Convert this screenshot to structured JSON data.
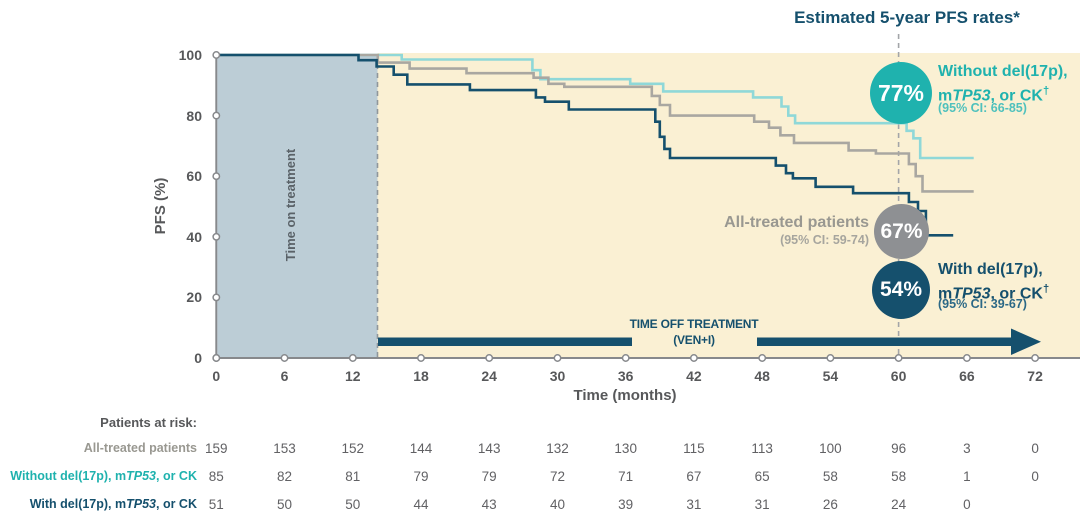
{
  "title": "Estimated 5-year PFS rates*",
  "colors": {
    "navy": "#15506d",
    "teal": "#1fb2ae",
    "teal_curve": "#8fd8d8",
    "teal_ci": "#4fc1bd",
    "gray_curve": "#a9a7a1",
    "gray_badge": "#8e9093",
    "gray_text": "#999891",
    "cream": "#faf0d3",
    "bluegray": "#bccdd6",
    "axis": "#87898c",
    "tick_text": "#57585a"
  },
  "panels": {
    "on_treatment_label": "Time on treatment"
  },
  "arrow": {
    "line1": "TIME OFF TREATMENT",
    "line2": "(VEN+I)"
  },
  "legend": {
    "without": {
      "badge": "77%",
      "line1": "Without del(17p),",
      "line2_pre": "m",
      "line2_italic": "TP53",
      "line2_post": ", or CK",
      "line2_sup": "†",
      "ci": "(95% CI: 66-85)"
    },
    "all": {
      "badge": "67%",
      "line1": "All-treated patients",
      "ci": "(95% CI: 59-74)"
    },
    "with": {
      "badge": "54%",
      "line1": "With del(17p),",
      "line2_pre": "m",
      "line2_italic": "TP53",
      "line2_post": ", or CK",
      "line2_sup": "†",
      "ci": "(95% CI: 39-67)"
    }
  },
  "chart_data": {
    "type": "line",
    "step": true,
    "title": "Estimated 5-year PFS rates*",
    "xlabel": "Time (months)",
    "ylabel": "PFS (%)",
    "xlim": [
      0,
      72
    ],
    "ylim": [
      0,
      100
    ],
    "x_ticks": [
      0,
      6,
      12,
      18,
      24,
      30,
      36,
      42,
      48,
      54,
      60,
      66,
      72
    ],
    "y_ticks": [
      0,
      20,
      40,
      60,
      80,
      100
    ],
    "grid": false,
    "annotations": {
      "time_on_treatment_months": [
        0,
        14
      ],
      "time_off_treatment_label": "TIME OFF TREATMENT (VEN+I)",
      "five_year_marker_month": 60
    },
    "series": [
      {
        "name": "Without del(17p), mTP53, or CK",
        "color": "#8fd8d8",
        "estimated_5yr_pfs_pct": 77,
        "ci_95": "66-85",
        "points": [
          [
            0,
            100
          ],
          [
            16.3,
            98.5
          ],
          [
            27.8,
            95
          ],
          [
            28.5,
            92
          ],
          [
            36.4,
            90.5
          ],
          [
            39.3,
            88
          ],
          [
            47.2,
            86
          ],
          [
            49.7,
            83
          ],
          [
            50.3,
            80
          ],
          [
            50.9,
            77.5
          ],
          [
            60.7,
            75
          ],
          [
            61.3,
            72.5
          ],
          [
            61.9,
            66
          ],
          [
            66.6,
            66
          ]
        ]
      },
      {
        "name": "All-treated patients",
        "color": "#a9a7a1",
        "estimated_5yr_pfs_pct": 67,
        "ci_95": "59-74",
        "points": [
          [
            0,
            100
          ],
          [
            14.2,
            97.5
          ],
          [
            17,
            95.5
          ],
          [
            22,
            94
          ],
          [
            27.9,
            92.5
          ],
          [
            29.2,
            90.5
          ],
          [
            30.6,
            89.5
          ],
          [
            38.3,
            86.5
          ],
          [
            39,
            83.5
          ],
          [
            39.9,
            80
          ],
          [
            47.3,
            78
          ],
          [
            48.6,
            76
          ],
          [
            49.6,
            73.5
          ],
          [
            50.8,
            71
          ],
          [
            55.6,
            68.5
          ],
          [
            58,
            67.5
          ],
          [
            60.9,
            64
          ],
          [
            61.5,
            60
          ],
          [
            62.1,
            55
          ],
          [
            66.6,
            55
          ]
        ]
      },
      {
        "name": "With del(17p), mTP53, or CK",
        "color": "#15506d",
        "estimated_5yr_pfs_pct": 54,
        "ci_95": "39-67",
        "points": [
          [
            0,
            100
          ],
          [
            12.5,
            98.3
          ],
          [
            14.1,
            96.2
          ],
          [
            15.6,
            93.5
          ],
          [
            16.8,
            90.3
          ],
          [
            22.3,
            88.4
          ],
          [
            28.1,
            86
          ],
          [
            28.9,
            84.6
          ],
          [
            31,
            82
          ],
          [
            38.6,
            78
          ],
          [
            39,
            73
          ],
          [
            39.4,
            69
          ],
          [
            39.9,
            66
          ],
          [
            49.2,
            63.5
          ],
          [
            50.1,
            61
          ],
          [
            50.7,
            59.3
          ],
          [
            52.7,
            56.5
          ],
          [
            56,
            54.4
          ],
          [
            60.9,
            51.5
          ],
          [
            61.7,
            48.5
          ],
          [
            62.4,
            40.5
          ],
          [
            64.8,
            40.5
          ]
        ]
      }
    ]
  },
  "at_risk": {
    "header": "Patients at risk:",
    "months": [
      0,
      6,
      12,
      18,
      24,
      30,
      36,
      42,
      48,
      54,
      60,
      66,
      72
    ],
    "rows": [
      {
        "label_pre": "All-treated patients",
        "label_italic": "",
        "label_post": "",
        "color": "#999891",
        "values": [
          "159",
          "153",
          "152",
          "144",
          "143",
          "132",
          "130",
          "115",
          "113",
          "100",
          "96",
          "3",
          "0"
        ]
      },
      {
        "label_pre": "Without del(17p), m",
        "label_italic": "TP53",
        "label_post": ", or CK",
        "color": "#1fb2ae",
        "values": [
          "85",
          "82",
          "81",
          "79",
          "79",
          "72",
          "71",
          "67",
          "65",
          "58",
          "58",
          "1",
          "0"
        ]
      },
      {
        "label_pre": "With del(17p), m",
        "label_italic": "TP53",
        "label_post": ", or CK",
        "color": "#15506d",
        "values": [
          "51",
          "50",
          "50",
          "44",
          "43",
          "40",
          "39",
          "31",
          "31",
          "26",
          "24",
          "0",
          ""
        ]
      }
    ]
  }
}
